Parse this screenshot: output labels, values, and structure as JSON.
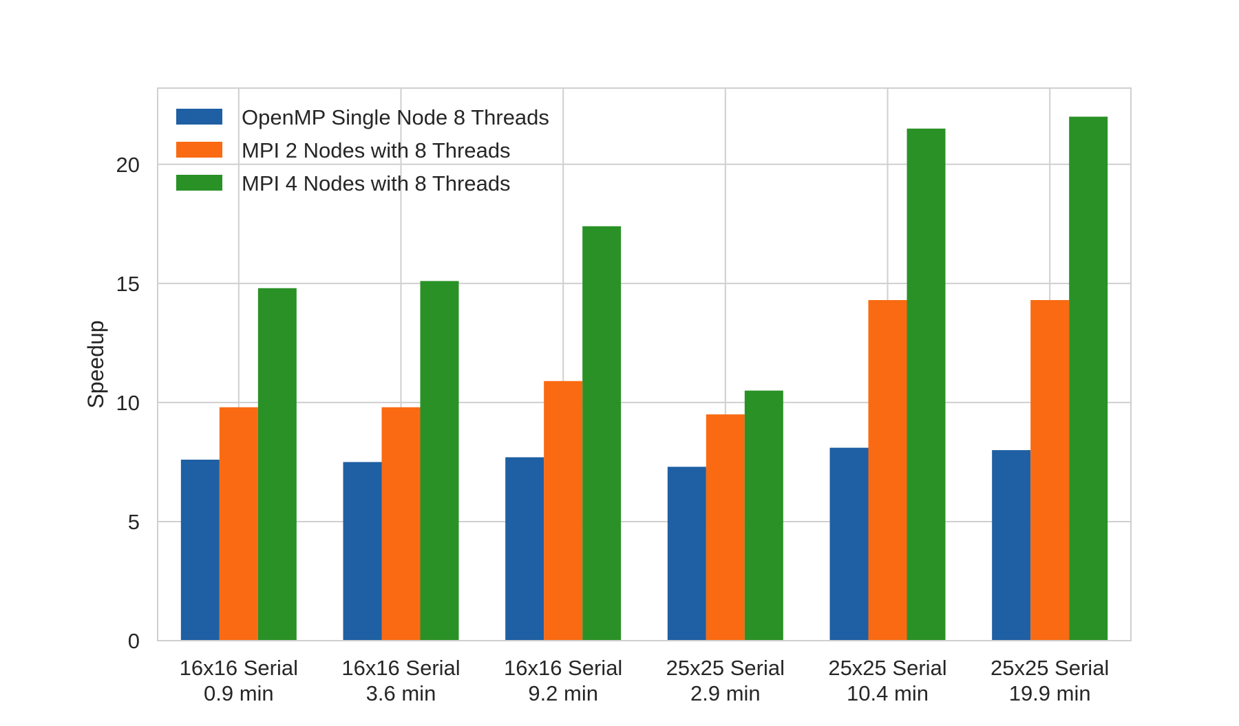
{
  "chart_data": {
    "type": "bar",
    "categories": [
      [
        "16x16 Serial",
        "0.9 min"
      ],
      [
        "16x16 Serial",
        "3.6 min"
      ],
      [
        "16x16 Serial",
        "9.2 min"
      ],
      [
        "25x25 Serial",
        "2.9 min"
      ],
      [
        "25x25 Serial",
        "10.4 min"
      ],
      [
        "25x25 Serial",
        "19.9 min"
      ]
    ],
    "series": [
      {
        "name": "OpenMP Single Node 8 Threads",
        "color": "#1f5fa3",
        "values": [
          7.6,
          7.5,
          7.7,
          7.3,
          8.1,
          8.0
        ]
      },
      {
        "name": "MPI 2 Nodes with 8 Threads",
        "color": "#f96a12",
        "values": [
          9.8,
          9.8,
          10.9,
          9.5,
          14.3,
          14.3
        ]
      },
      {
        "name": "MPI 4 Nodes with 8 Threads",
        "color": "#2a9127",
        "values": [
          14.8,
          15.1,
          17.4,
          10.5,
          21.5,
          22.0
        ]
      }
    ],
    "xlabel": "",
    "ylabel": "Speedup",
    "ylim": [
      0,
      23.2
    ],
    "yticks": [
      0,
      5,
      10,
      15,
      20
    ],
    "grid": true,
    "legend_position": "top-left",
    "title": ""
  }
}
